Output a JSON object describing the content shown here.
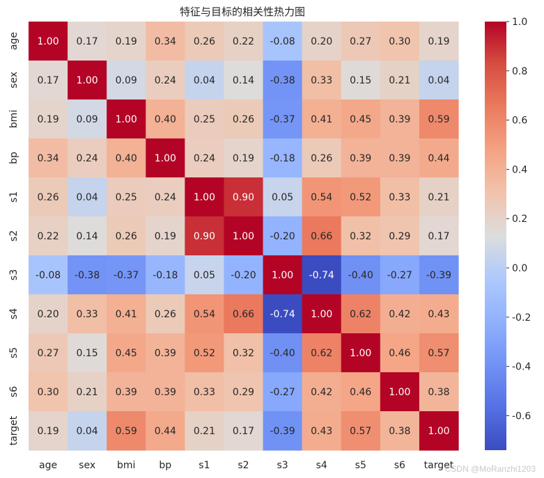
{
  "chart_data": {
    "type": "heatmap",
    "title": "特征与目标的相关性热力图",
    "xlabel": "",
    "ylabel": "",
    "labels": [
      "age",
      "sex",
      "bmi",
      "bp",
      "s1",
      "s2",
      "s3",
      "s4",
      "s5",
      "s6",
      "target"
    ],
    "values": [
      [
        1.0,
        0.17,
        0.19,
        0.34,
        0.26,
        0.22,
        -0.08,
        0.2,
        0.27,
        0.3,
        0.19
      ],
      [
        0.17,
        1.0,
        0.09,
        0.24,
        0.04,
        0.14,
        -0.38,
        0.33,
        0.15,
        0.21,
        0.04
      ],
      [
        0.19,
        0.09,
        1.0,
        0.4,
        0.25,
        0.26,
        -0.37,
        0.41,
        0.45,
        0.39,
        0.59
      ],
      [
        0.34,
        0.24,
        0.4,
        1.0,
        0.24,
        0.19,
        -0.18,
        0.26,
        0.39,
        0.39,
        0.44
      ],
      [
        0.26,
        0.04,
        0.25,
        0.24,
        1.0,
        0.9,
        0.05,
        0.54,
        0.52,
        0.33,
        0.21
      ],
      [
        0.22,
        0.14,
        0.26,
        0.19,
        0.9,
        1.0,
        -0.2,
        0.66,
        0.32,
        0.29,
        0.17
      ],
      [
        -0.08,
        -0.38,
        -0.37,
        -0.18,
        0.05,
        -0.2,
        1.0,
        -0.74,
        -0.4,
        -0.27,
        -0.39
      ],
      [
        0.2,
        0.33,
        0.41,
        0.26,
        0.54,
        0.66,
        -0.74,
        1.0,
        0.62,
        0.42,
        0.43
      ],
      [
        0.27,
        0.15,
        0.45,
        0.39,
        0.52,
        0.32,
        -0.4,
        0.62,
        1.0,
        0.46,
        0.57
      ],
      [
        0.3,
        0.21,
        0.39,
        0.39,
        0.33,
        0.29,
        -0.27,
        0.42,
        0.46,
        1.0,
        0.38
      ],
      [
        0.19,
        0.04,
        0.59,
        0.44,
        0.21,
        0.17,
        -0.39,
        0.43,
        0.57,
        0.38,
        1.0
      ]
    ],
    "value_format": "0.00",
    "colormap": "coolwarm",
    "colorbar": {
      "vmin": -0.74,
      "vmax": 1.0,
      "ticks": [
        -0.6,
        -0.4,
        -0.2,
        0.0,
        0.2,
        0.4,
        0.6,
        0.8,
        1.0
      ],
      "tick_labels": [
        "-0.6",
        "-0.4",
        "-0.2",
        "0.0",
        "0.2",
        "0.4",
        "0.6",
        "0.8",
        "1.0"
      ]
    },
    "grid": false,
    "legend_placement": "right"
  },
  "watermark": "CSDN @MoRanzhi1203",
  "colors": {
    "cold": "#3b4cc0",
    "neutral": "#dddddd",
    "hot": "#b40426",
    "text_dark": "#262626",
    "text_light": "#ffffff"
  }
}
